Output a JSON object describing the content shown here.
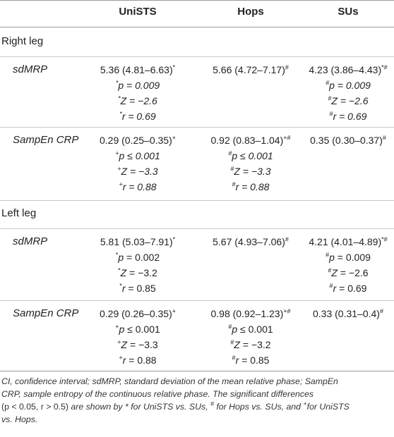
{
  "headers": [
    "",
    "UniSTS",
    "Hops",
    "SUs"
  ],
  "sections": [
    {
      "title": "Right leg",
      "rows": [
        {
          "label": "sdMRP",
          "cols": [
            {
              "main": "5.36 (4.81–6.63)",
              "mark": "*",
              "p_mark": "*",
              "p": "p = 0.009",
              "z_mark": "*",
              "z": "Z = −2.6",
              "r_mark": "*",
              "r": "r = 0.69",
              "italic_stats": true
            },
            {
              "main": "5.66 (4.72–7.17)",
              "mark": "#",
              "stats": false
            },
            {
              "main": "4.23 (3.86–4.43)",
              "mark": "*#",
              "p_mark": "#",
              "p": "p = 0.009",
              "z_mark": "#",
              "z": "Z = −2.6",
              "r_mark": "#",
              "r": "r = 0.69",
              "italic_stats": true
            }
          ]
        },
        {
          "label": "SampEn CRP",
          "cols": [
            {
              "main": "0.29 (0.25–0.35)",
              "mark": "+",
              "p_mark": "+",
              "p": "p ≤ 0.001",
              "z_mark": "+",
              "z": "Z = −3.3",
              "r_mark": "+",
              "r": "r = 0.88",
              "italic_stats": true
            },
            {
              "main": "0.92 (0.83–1.04)",
              "mark": "+#",
              "p_mark": "#",
              "p": "p ≤ 0.001",
              "z_mark": "#",
              "z": "Z = −3.3",
              "r_mark": "#",
              "r": "r = 0.88",
              "italic_stats": true
            },
            {
              "main": "0.35 (0.30–0.37)",
              "mark": "#",
              "stats": false
            }
          ]
        }
      ]
    },
    {
      "title": "Left leg",
      "rows": [
        {
          "label": "sdMRP",
          "cols": [
            {
              "main": "5.81 (5.03–7.91)",
              "mark": "*",
              "p_mark": "*",
              "p_sym": "p",
              "p_val": " = 0.002",
              "z_mark": "*",
              "z_sym": "Z",
              "z_val": " = −3.2",
              "r_mark": "*",
              "r_sym": "r",
              "r_val": " = 0.85"
            },
            {
              "main": "5.67 (4.93–7.06)",
              "mark": "#",
              "stats": false
            },
            {
              "main": "4.21 (4.01–4.89)",
              "mark": "*#",
              "p_mark": "#",
              "p_sym": "p",
              "p_val": " = 0.009",
              "z_mark": "#",
              "z_sym": "Z",
              "z_val": " = −2.6",
              "r_mark": "#",
              "r_sym": "r",
              "r_val": " = 0.69"
            }
          ]
        },
        {
          "label": "SampEn CRP",
          "cols": [
            {
              "main": "0.29 (0.26–0.35)",
              "mark": "+",
              "p_mark": "+",
              "p_sym": "p",
              "p_val": " ≤ 0.001",
              "z_mark": "+",
              "z_sym": "Z",
              "z_val": " = −3.3",
              "r_mark": "+",
              "r_sym": "r",
              "r_val": " = 0.88"
            },
            {
              "main": "0.98 (0.92–1.23)",
              "mark": "+#",
              "p_mark": "#",
              "p_sym": "p",
              "p_val": " ≤ 0.001",
              "z_mark": "#",
              "z_sym": "Z",
              "z_val": " = −3.2",
              "r_mark": "#",
              "r_sym": "r",
              "r_val": " = 0.85"
            },
            {
              "main": "0.33 (0.31–0.4)",
              "mark": "#",
              "stats": false
            }
          ]
        }
      ]
    }
  ],
  "footnote": {
    "line1": "CI, confidence interval; sdMRP, standard deviation of the mean relative phase; SampEn",
    "line2a": "CRP, sample entropy of the continuous relative phase. The significant differences",
    "line3_paren": "(p < 0.05, r > 0.5)",
    "line3_rest": " are shown by * for UniSTS vs. SUs, ",
    "line3_hash": "#",
    "line3_rest2": " for Hops vs. SUs, and ",
    "line3_plus": "+",
    "line3_rest3": "for UniSTS",
    "line4": "vs. Hops."
  }
}
